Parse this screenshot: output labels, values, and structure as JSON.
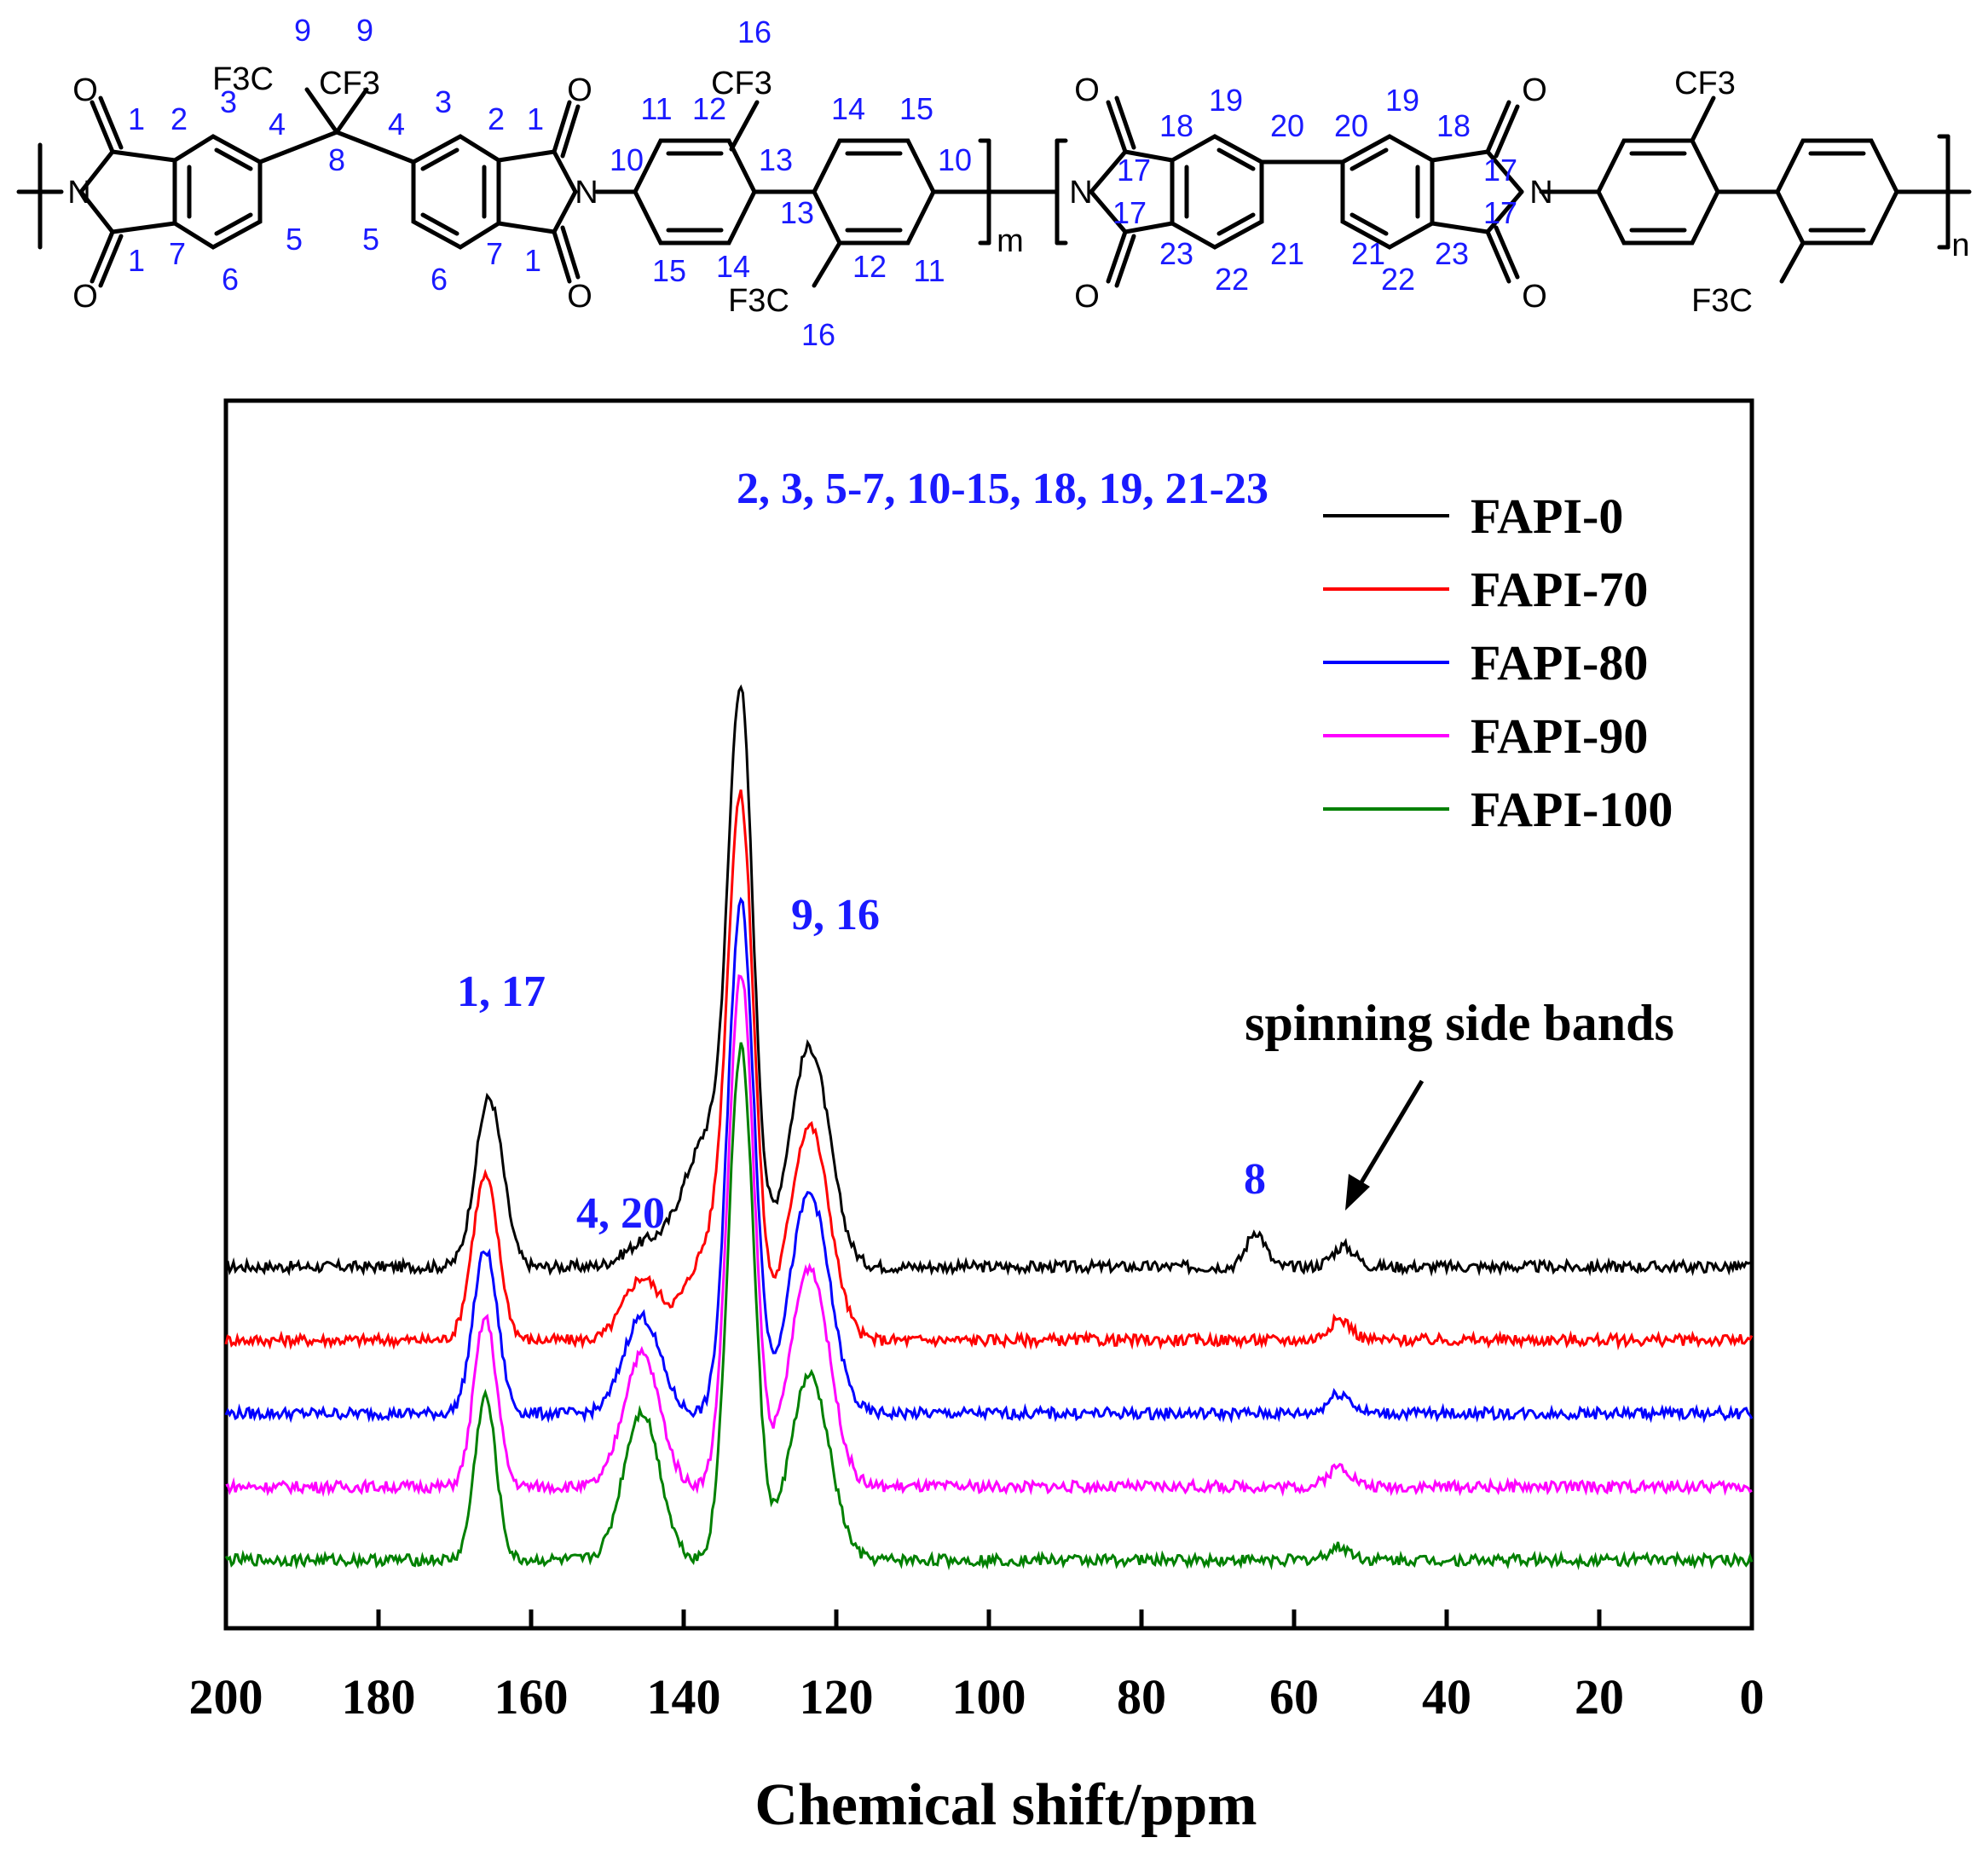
{
  "structure": {
    "atoms": [
      {
        "id": "o1a",
        "text": "O",
        "role": "atom"
      },
      {
        "id": "n1",
        "text": "N",
        "role": "atom"
      },
      {
        "id": "o1b",
        "text": "O",
        "role": "atom"
      },
      {
        "id": "f3c_l",
        "text": "F3C",
        "role": "atom"
      },
      {
        "id": "cf3_r",
        "text": "CF3",
        "role": "atom"
      },
      {
        "id": "o2a",
        "text": "O",
        "role": "atom"
      },
      {
        "id": "n2",
        "text": "N",
        "role": "atom"
      },
      {
        "id": "o2b",
        "text": "O",
        "role": "atom"
      },
      {
        "id": "cf3_top1",
        "text": "CF3",
        "role": "atom"
      },
      {
        "id": "f3c_bot1",
        "text": "F3C",
        "role": "atom"
      },
      {
        "id": "sub_m",
        "text": "m",
        "role": "atom"
      },
      {
        "id": "o3a",
        "text": "O",
        "role": "atom"
      },
      {
        "id": "n3",
        "text": "N",
        "role": "atom"
      },
      {
        "id": "o3b",
        "text": "O",
        "role": "atom"
      },
      {
        "id": "o4a",
        "text": "O",
        "role": "atom"
      },
      {
        "id": "n4",
        "text": "N",
        "role": "atom"
      },
      {
        "id": "o4b",
        "text": "O",
        "role": "atom"
      },
      {
        "id": "cf3_top2",
        "text": "CF3",
        "role": "atom"
      },
      {
        "id": "f3c_bot2",
        "text": "F3C",
        "role": "atom"
      },
      {
        "id": "sub_n",
        "text": "n",
        "role": "atom"
      }
    ],
    "numbers": [
      "1",
      "2",
      "3",
      "4",
      "8",
      "4",
      "3",
      "2",
      "1",
      "9",
      "9",
      "5",
      "6",
      "7",
      "1",
      "5",
      "6",
      "7",
      "1",
      "10",
      "11",
      "12",
      "13",
      "14",
      "15",
      "10",
      "16",
      "16",
      "15",
      "14",
      "13",
      "12",
      "11",
      "17",
      "17",
      "18",
      "19",
      "20",
      "20",
      "19",
      "18",
      "17",
      "17",
      "23",
      "22",
      "21",
      "21",
      "22",
      "23"
    ]
  },
  "chart_data": {
    "type": "line",
    "xlabel": "Chemical shift/ppm",
    "ylabel": "",
    "xlim": [
      200,
      0
    ],
    "x_reversed": true,
    "xticks": [
      200,
      180,
      160,
      140,
      120,
      100,
      80,
      60,
      40,
      20,
      0
    ],
    "xtick_labels": [
      "200",
      "180",
      "160",
      "140",
      "120",
      "100",
      "80",
      "60",
      "40",
      "20",
      "0"
    ],
    "yticks": [],
    "grid": false,
    "legend_position": "top-right",
    "series": [
      {
        "name": "FAPI-0",
        "color": "#000000",
        "offset": 4,
        "peaks": [
          [
            165.5,
            3.3,
            1.8
          ],
          [
            145.5,
            0.4,
            2.5
          ],
          [
            132.5,
            10.0,
            1.6
          ],
          [
            136.5,
            2.6,
            3.5
          ],
          [
            123.5,
            4.3,
            2.6
          ],
          [
            65,
            0.7,
            1.2
          ],
          [
            53.5,
            0.4,
            1.5
          ]
        ]
      },
      {
        "name": "FAPI-70",
        "color": "#ff0000",
        "offset": 3,
        "peaks": [
          [
            166,
            3.2,
            1.7
          ],
          [
            145.5,
            1.2,
            2.4
          ],
          [
            132.5,
            9.9,
            1.7
          ],
          [
            136.5,
            1.8,
            3.0
          ],
          [
            123.5,
            4.2,
            2.6
          ],
          [
            54,
            0.4,
            1.5
          ]
        ]
      },
      {
        "name": "FAPI-80",
        "color": "#0000ff",
        "offset": 2,
        "peaks": [
          [
            166,
            3.2,
            1.6
          ],
          [
            145.5,
            1.9,
            2.4
          ],
          [
            132.5,
            10.0,
            1.7
          ],
          [
            123.5,
            4.3,
            2.6
          ],
          [
            54,
            0.4,
            1.5
          ]
        ]
      },
      {
        "name": "FAPI-90",
        "color": "#ff00ff",
        "offset": 1,
        "peaks": [
          [
            166,
            3.3,
            1.5
          ],
          [
            145.5,
            2.6,
            2.4
          ],
          [
            132.5,
            10.0,
            1.7
          ],
          [
            123.5,
            4.3,
            2.6
          ],
          [
            54,
            0.4,
            1.5
          ]
        ]
      },
      {
        "name": "FAPI-100",
        "color": "#008000",
        "offset": 0,
        "peaks": [
          [
            166,
            3.2,
            1.4
          ],
          [
            145.5,
            2.9,
            2.4
          ],
          [
            132.5,
            10.0,
            1.7
          ],
          [
            123.5,
            3.6,
            2.6
          ],
          [
            54,
            0.25,
            1.5
          ]
        ]
      }
    ],
    "annotations": [
      {
        "text": "2, 3, 5-7, 10-15, 18, 19, 21-23",
        "x": 132,
        "color": "#1a1aff"
      },
      {
        "text": "9, 16",
        "x": 121,
        "color": "#1a1aff"
      },
      {
        "text": "1, 17",
        "x": 166,
        "color": "#1a1aff"
      },
      {
        "text": "4, 20",
        "x": 144,
        "color": "#1a1aff"
      },
      {
        "text": "8",
        "x": 65,
        "color": "#1a1aff"
      },
      {
        "text": "spinning side bands",
        "x": 36,
        "color": "#000000"
      }
    ]
  }
}
